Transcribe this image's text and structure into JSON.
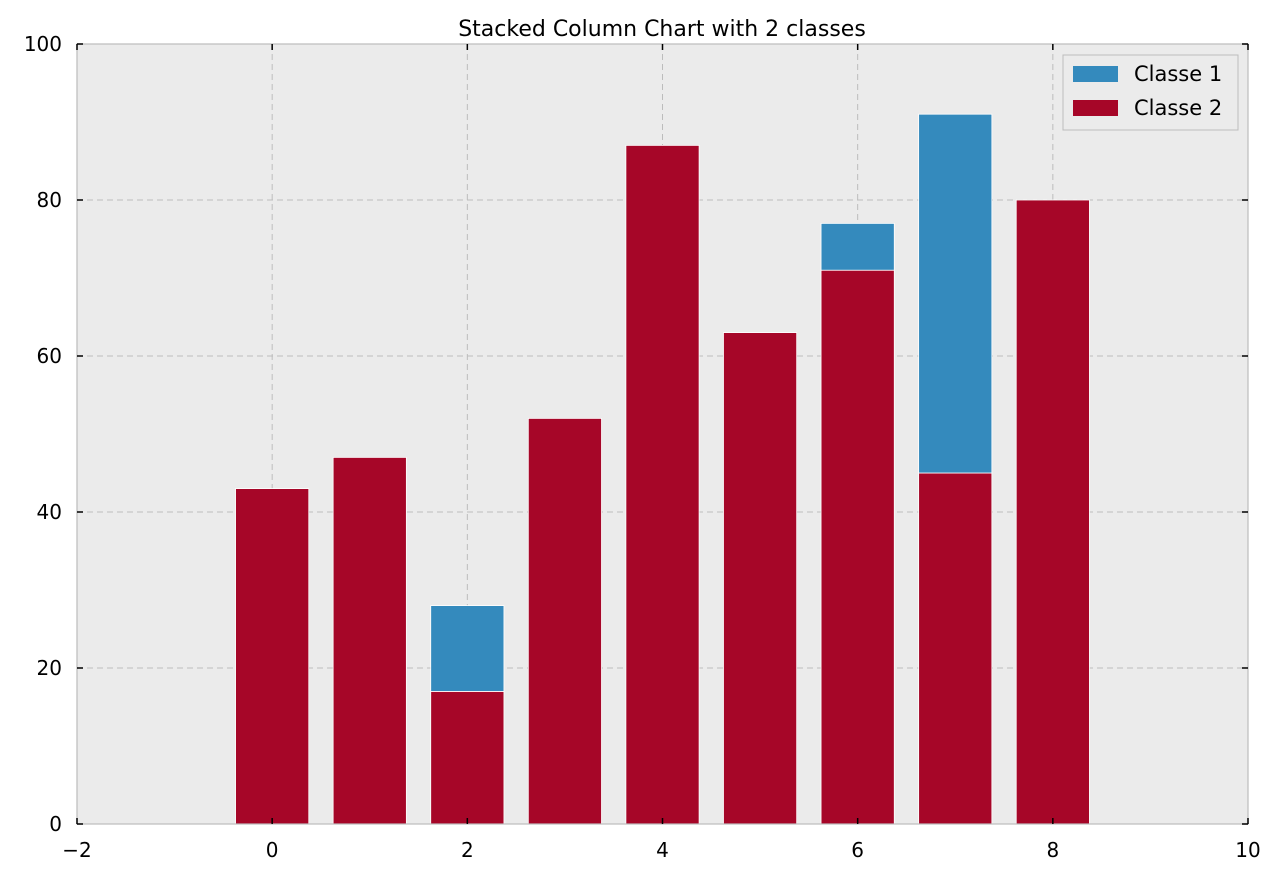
{
  "chart_data": {
    "type": "bar",
    "stacked": true,
    "title": "Stacked Column Chart with 2 classes",
    "xlabel": "",
    "ylabel": "",
    "xlim": [
      -2,
      10
    ],
    "ylim": [
      0,
      100
    ],
    "x_ticks": [
      -2,
      0,
      2,
      4,
      6,
      8,
      10
    ],
    "x_tick_labels": [
      "−2",
      "0",
      "2",
      "4",
      "6",
      "8",
      "10"
    ],
    "y_ticks": [
      0,
      20,
      40,
      60,
      80,
      100
    ],
    "y_tick_labels": [
      "0",
      "20",
      "40",
      "60",
      "80",
      "100"
    ],
    "x": [
      0,
      1,
      2,
      3,
      4,
      5,
      6,
      7,
      8
    ],
    "series": [
      {
        "name": "Classe 2",
        "color": "#A60628",
        "values": [
          43,
          47,
          17,
          52,
          87,
          63,
          71,
          45,
          80
        ]
      },
      {
        "name": "Classe 1",
        "color": "#348ABD",
        "values": [
          0,
          0,
          11,
          0,
          0,
          0,
          6,
          46,
          0
        ]
      }
    ],
    "legend": {
      "position": "top-right",
      "entries": [
        {
          "label": "Classe 1",
          "color": "#348ABD"
        },
        {
          "label": "Classe 2",
          "color": "#A60628"
        }
      ]
    },
    "grid": true,
    "background": "#EBEBEB"
  }
}
